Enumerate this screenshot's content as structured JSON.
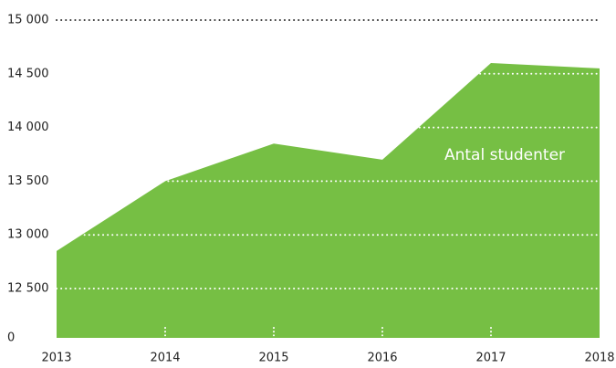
{
  "chart_data": {
    "type": "area",
    "categories": [
      "2013",
      "2014",
      "2015",
      "2016",
      "2017",
      "2018"
    ],
    "series": [
      {
        "name": "Antal studenter",
        "color": "#76bf44",
        "values": [
          12850,
          13500,
          13850,
          13700,
          14600,
          14550
        ]
      }
    ],
    "ylim": [
      0,
      15000
    ],
    "yticks": [
      0,
      {
        "value": 12500,
        "label": "12 500"
      },
      {
        "value": 13000,
        "label": "13 000"
      },
      {
        "value": 13500,
        "label": "13 500"
      },
      {
        "value": 14000,
        "label": "14 000"
      },
      {
        "value": 14500,
        "label": "14 500"
      },
      {
        "value": 15000,
        "label": "15 000"
      }
    ],
    "grid": true
  }
}
